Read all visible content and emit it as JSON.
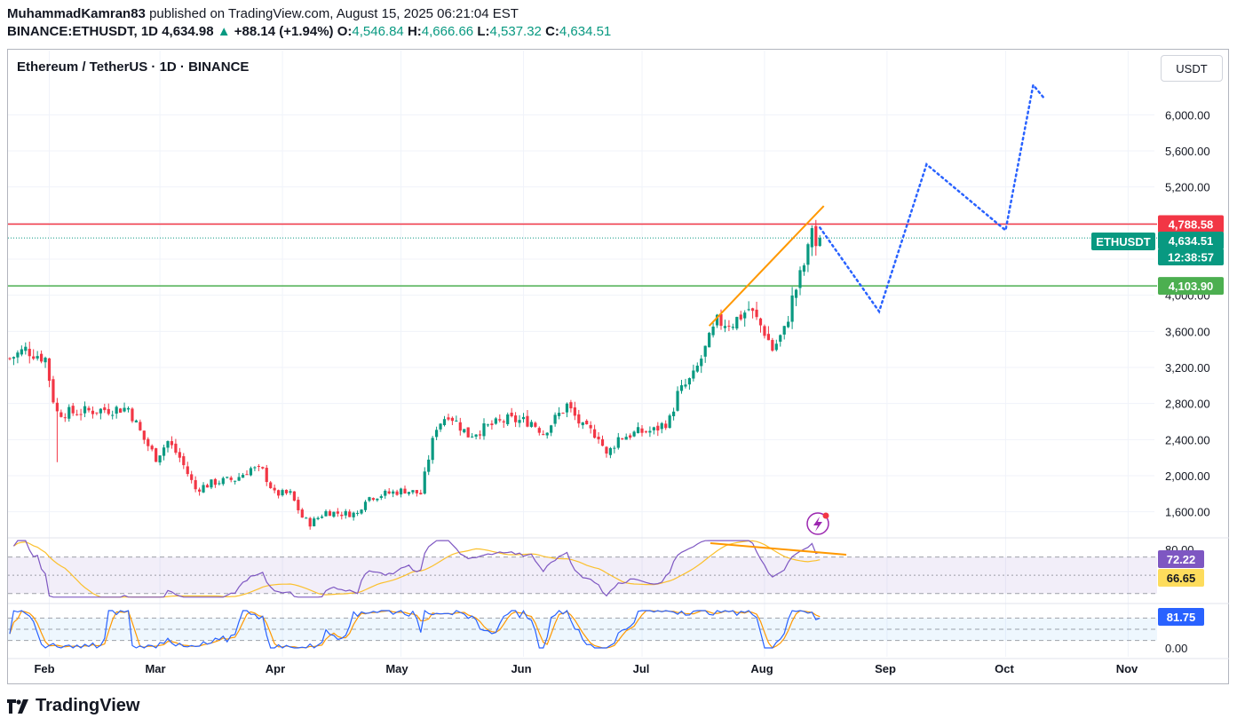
{
  "header": {
    "author": "MuhammadKamran83",
    "published_text": "published on TradingView.com, August 15, 2025 06:21:04 EST",
    "symbol": "BINANCE:ETHUSDT, 1D",
    "last": "4,634.98",
    "change": "+88.14 (+1.94%)",
    "o_label": "O:",
    "o_value": "4,546.84",
    "h_label": "H:",
    "h_value": "4,666.66",
    "l_label": "L:",
    "l_value": "4,537.32",
    "c_label": "C:",
    "c_value": "4,634.51"
  },
  "chart_title": "Ethereum / TetherUS · 1D · BINANCE",
  "currency_button": "USDT",
  "footer": {
    "brand": "TradingView"
  },
  "colors": {
    "up": "#089981",
    "down": "#f23645",
    "resistance": "#f23645",
    "support": "#4caf50",
    "trendline": "#ff9800",
    "projection": "#2962ff",
    "rsi": "#7e57c2",
    "rsi_ma": "#fbc02d",
    "stoch_k": "#2962ff",
    "stoch_d": "#ff9800"
  },
  "chart_data": {
    "type": "candlestick",
    "price_axis": {
      "ticks": [
        "6,000.00",
        "5,600.00",
        "5,200.00",
        "4,000.00",
        "3,600.00",
        "3,200.00",
        "2,800.00",
        "2,400.00",
        "2,000.00",
        "1,600.00"
      ],
      "tick_values": [
        6000,
        5600,
        5200,
        4000,
        3600,
        3200,
        2800,
        2400,
        2000,
        1600
      ],
      "ylim": [
        1300,
        6400
      ]
    },
    "x_axis": {
      "labels": [
        "Feb",
        "Mar",
        "Apr",
        "May",
        "Jun",
        "Jul",
        "Aug",
        "Sep",
        "Oct",
        "Nov"
      ]
    },
    "price_anchors": [
      [
        "2025-01-22",
        3300
      ],
      [
        "2025-01-26",
        3400
      ],
      [
        "2025-01-31",
        3300
      ],
      [
        "2025-02-02",
        2850
      ],
      [
        "2025-02-03",
        2700
      ],
      [
        "2025-02-07",
        2700
      ],
      [
        "2025-02-14",
        2730
      ],
      [
        "2025-02-21",
        2750
      ],
      [
        "2025-02-25",
        2400
      ],
      [
        "2025-02-28",
        2200
      ],
      [
        "2025-03-03",
        2380
      ],
      [
        "2025-03-06",
        2200
      ],
      [
        "2025-03-10",
        1850
      ],
      [
        "2025-03-15",
        1930
      ],
      [
        "2025-03-20",
        1960
      ],
      [
        "2025-03-24",
        2080
      ],
      [
        "2025-03-27",
        2050
      ],
      [
        "2025-03-30",
        1800
      ],
      [
        "2025-04-03",
        1800
      ],
      [
        "2025-04-06",
        1540
      ],
      [
        "2025-04-08",
        1470
      ],
      [
        "2025-04-12",
        1600
      ],
      [
        "2025-04-16",
        1580
      ],
      [
        "2025-04-20",
        1580
      ],
      [
        "2025-04-22",
        1750
      ],
      [
        "2025-04-26",
        1790
      ],
      [
        "2025-05-02",
        1840
      ],
      [
        "2025-05-06",
        1800
      ],
      [
        "2025-05-08",
        2200
      ],
      [
        "2025-05-10",
        2550
      ],
      [
        "2025-05-13",
        2690
      ],
      [
        "2025-05-18",
        2450
      ],
      [
        "2025-05-24",
        2560
      ],
      [
        "2025-05-28",
        2620
      ],
      [
        "2025-06-03",
        2600
      ],
      [
        "2025-06-06",
        2480
      ],
      [
        "2025-06-10",
        2680
      ],
      [
        "2025-06-12",
        2780
      ],
      [
        "2025-06-16",
        2530
      ],
      [
        "2025-06-20",
        2450
      ],
      [
        "2025-06-22",
        2220
      ],
      [
        "2025-06-25",
        2420
      ],
      [
        "2025-06-30",
        2480
      ],
      [
        "2025-07-04",
        2500
      ],
      [
        "2025-07-08",
        2620
      ],
      [
        "2025-07-10",
        2900
      ],
      [
        "2025-07-14",
        3100
      ],
      [
        "2025-07-17",
        3400
      ],
      [
        "2025-07-20",
        3700
      ],
      [
        "2025-07-24",
        3700
      ],
      [
        "2025-07-28",
        3850
      ],
      [
        "2025-08-01",
        3600
      ],
      [
        "2025-08-03",
        3400
      ],
      [
        "2025-08-06",
        3600
      ],
      [
        "2025-08-08",
        3950
      ],
      [
        "2025-08-10",
        4200
      ],
      [
        "2025-08-12",
        4480
      ],
      [
        "2025-08-13",
        4780
      ],
      [
        "2025-08-14",
        4550
      ],
      [
        "2025-08-15",
        4634
      ]
    ],
    "last_candle": {
      "date": "2025-08-15",
      "open": 4546.84,
      "high": 4666.66,
      "low": 4537.32,
      "close": 4634.51
    },
    "levels": [
      {
        "name": "resistance",
        "value": 4788.58,
        "label": "4,788.58"
      },
      {
        "name": "support",
        "value": 4103.9,
        "label": "4,103.90"
      }
    ],
    "current_price": {
      "symbol": "ETHUSDT",
      "value": 4634.51,
      "label": "4,634.51",
      "countdown": "12:38:57"
    },
    "trendline": [
      [
        "2025-07-18",
        3660
      ],
      [
        "2025-08-16",
        4990
      ]
    ],
    "projection_path": [
      [
        "2025-08-15",
        4750
      ],
      [
        "2025-08-30",
        3820
      ],
      [
        "2025-09-11",
        5450
      ],
      [
        "2025-10-01",
        4720
      ],
      [
        "2025-10-08",
        6330
      ],
      [
        "2025-10-11",
        6170
      ]
    ],
    "rsi": {
      "labels": [
        "72.22",
        "66.65"
      ],
      "value": 72.22,
      "ma_value": 66.65,
      "bands": [
        70,
        30
      ],
      "ylim": [
        20,
        90
      ],
      "axis_label_partial": "80.00",
      "divergence_line": [
        [
          79,
          71
        ]
      ]
    },
    "stochastic": {
      "labels": [
        "81.75"
      ],
      "value": 81.75,
      "axis_tick": "0.00",
      "bands": [
        80,
        20
      ],
      "ylim": [
        0,
        100
      ]
    }
  }
}
